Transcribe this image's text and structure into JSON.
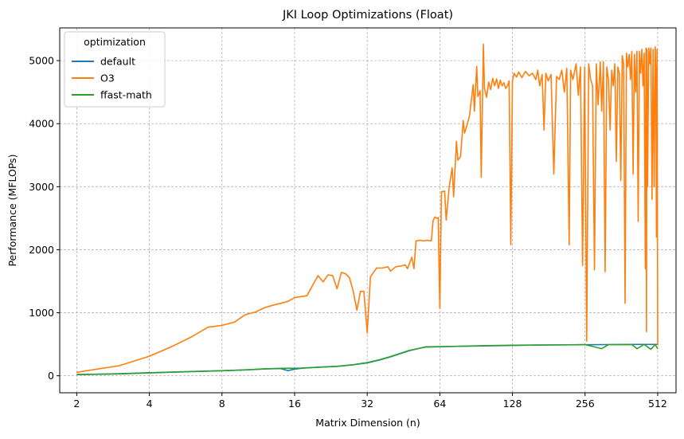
{
  "chart_data": {
    "type": "line",
    "title": "JKI Loop Optimizations (Float)",
    "xlabel": "Matrix Dimension (n)",
    "ylabel": "Performance (MFLOPs)",
    "x_scale": "log2",
    "xlim": [
      1.7,
      610
    ],
    "ylim": [
      -270,
      5520
    ],
    "x_ticks": [
      2,
      4,
      8,
      16,
      32,
      64,
      128,
      256,
      512
    ],
    "x_tick_labels": [
      "2",
      "4",
      "8",
      "16",
      "32",
      "64",
      "128",
      "256",
      "512"
    ],
    "y_ticks": [
      0,
      1000,
      2000,
      3000,
      4000,
      5000
    ],
    "y_tick_labels": [
      "0",
      "1000",
      "2000",
      "3000",
      "4000",
      "5000"
    ],
    "grid": true,
    "legend": {
      "title": "optimization",
      "placement": "top-left"
    },
    "series": [
      {
        "name": "default",
        "color": "#1f77b4",
        "points": [
          [
            2,
            20
          ],
          [
            3,
            32
          ],
          [
            4,
            48
          ],
          [
            6,
            68
          ],
          [
            8,
            80
          ],
          [
            10,
            92
          ],
          [
            12,
            108
          ],
          [
            14,
            115
          ],
          [
            15,
            82
          ],
          [
            16,
            105
          ],
          [
            17,
            118
          ],
          [
            20,
            135
          ],
          [
            24,
            150
          ],
          [
            28,
            175
          ],
          [
            32,
            205
          ],
          [
            36,
            250
          ],
          [
            40,
            300
          ],
          [
            48,
            400
          ],
          [
            56,
            460
          ],
          [
            64,
            462
          ],
          [
            80,
            468
          ],
          [
            100,
            475
          ],
          [
            128,
            482
          ],
          [
            160,
            487
          ],
          [
            200,
            490
          ],
          [
            256,
            493
          ],
          [
            320,
            495
          ],
          [
            400,
            497
          ],
          [
            450,
            498
          ],
          [
            512,
            498
          ]
        ]
      },
      {
        "name": "O3",
        "color": "#ff7f0e",
        "points": [
          [
            2,
            55
          ],
          [
            3,
            160
          ],
          [
            4,
            310
          ],
          [
            5,
            470
          ],
          [
            6,
            620
          ],
          [
            7,
            770
          ],
          [
            8,
            800
          ],
          [
            9,
            850
          ],
          [
            10,
            970
          ],
          [
            11,
            1010
          ],
          [
            12,
            1080
          ],
          [
            13,
            1120
          ],
          [
            14,
            1150
          ],
          [
            15,
            1180
          ],
          [
            16,
            1240
          ],
          [
            18,
            1270
          ],
          [
            20,
            1590
          ],
          [
            21,
            1490
          ],
          [
            22,
            1600
          ],
          [
            23,
            1590
          ],
          [
            24,
            1380
          ],
          [
            25,
            1640
          ],
          [
            26,
            1620
          ],
          [
            27,
            1560
          ],
          [
            28,
            1340
          ],
          [
            29,
            1040
          ],
          [
            30,
            1340
          ],
          [
            31,
            1340
          ],
          [
            32,
            680
          ],
          [
            33,
            1570
          ],
          [
            35,
            1710
          ],
          [
            37,
            1710
          ],
          [
            39,
            1730
          ],
          [
            40,
            1660
          ],
          [
            42,
            1730
          ],
          [
            44,
            1740
          ],
          [
            46,
            1760
          ],
          [
            47,
            1700
          ],
          [
            49,
            1880
          ],
          [
            50,
            1700
          ],
          [
            51,
            2140
          ],
          [
            53,
            2150
          ],
          [
            55,
            2140
          ],
          [
            57,
            2150
          ],
          [
            59,
            2140
          ],
          [
            60,
            2460
          ],
          [
            61,
            2520
          ],
          [
            62,
            2500
          ],
          [
            63,
            2510
          ],
          [
            64,
            1070
          ],
          [
            65,
            2920
          ],
          [
            67,
            2930
          ],
          [
            68,
            2470
          ],
          [
            70,
            3000
          ],
          [
            72,
            3300
          ],
          [
            73,
            2840
          ],
          [
            75,
            3720
          ],
          [
            76,
            3420
          ],
          [
            78,
            3480
          ],
          [
            80,
            4050
          ],
          [
            81,
            3850
          ],
          [
            83,
            3980
          ],
          [
            85,
            4130
          ],
          [
            86,
            4300
          ],
          [
            88,
            4620
          ],
          [
            89,
            4200
          ],
          [
            91,
            4910
          ],
          [
            92,
            4430
          ],
          [
            94,
            4520
          ],
          [
            95,
            3150
          ],
          [
            97,
            5260
          ],
          [
            98,
            4560
          ],
          [
            100,
            4420
          ],
          [
            102,
            4660
          ],
          [
            104,
            4540
          ],
          [
            106,
            4720
          ],
          [
            108,
            4600
          ],
          [
            110,
            4710
          ],
          [
            112,
            4560
          ],
          [
            114,
            4690
          ],
          [
            116,
            4600
          ],
          [
            118,
            4650
          ],
          [
            120,
            4560
          ],
          [
            122,
            4600
          ],
          [
            124,
            4680
          ],
          [
            126,
            2080
          ],
          [
            128,
            4680
          ],
          [
            130,
            4800
          ],
          [
            133,
            4740
          ],
          [
            136,
            4820
          ],
          [
            140,
            4730
          ],
          [
            145,
            4830
          ],
          [
            150,
            4760
          ],
          [
            155,
            4800
          ],
          [
            160,
            4700
          ],
          [
            163,
            4850
          ],
          [
            166,
            4600
          ],
          [
            170,
            4780
          ],
          [
            173,
            3900
          ],
          [
            176,
            4800
          ],
          [
            180,
            4680
          ],
          [
            185,
            4780
          ],
          [
            190,
            3200
          ],
          [
            195,
            4750
          ],
          [
            200,
            4700
          ],
          [
            205,
            4850
          ],
          [
            210,
            4500
          ],
          [
            215,
            4880
          ],
          [
            220,
            2080
          ],
          [
            223,
            4850
          ],
          [
            228,
            4700
          ],
          [
            235,
            4950
          ],
          [
            240,
            4450
          ],
          [
            245,
            4900
          ],
          [
            250,
            1750
          ],
          [
            255,
            4900
          ],
          [
            260,
            550
          ],
          [
            265,
            4950
          ],
          [
            270,
            4700
          ],
          [
            275,
            4600
          ],
          [
            280,
            1680
          ],
          [
            285,
            4950
          ],
          [
            290,
            4300
          ],
          [
            296,
            4980
          ],
          [
            300,
            4200
          ],
          [
            305,
            4980
          ],
          [
            310,
            1650
          ],
          [
            315,
            4900
          ],
          [
            320,
            4700
          ],
          [
            325,
            3900
          ],
          [
            330,
            4850
          ],
          [
            335,
            4600
          ],
          [
            340,
            4950
          ],
          [
            345,
            3400
          ],
          [
            350,
            4900
          ],
          [
            355,
            4800
          ],
          [
            360,
            3100
          ],
          [
            365,
            5080
          ],
          [
            370,
            4950
          ],
          [
            375,
            1150
          ],
          [
            380,
            5120
          ],
          [
            385,
            4900
          ],
          [
            390,
            5100
          ],
          [
            395,
            4700
          ],
          [
            400,
            5150
          ],
          [
            405,
            3200
          ],
          [
            410,
            5100
          ],
          [
            415,
            4500
          ],
          [
            420,
            5150
          ],
          [
            425,
            2450
          ],
          [
            430,
            5150
          ],
          [
            435,
            4800
          ],
          [
            440,
            5180
          ],
          [
            445,
            4600
          ],
          [
            450,
            5120
          ],
          [
            455,
            1700
          ],
          [
            458,
            5200
          ],
          [
            460,
            700
          ],
          [
            462,
            5180
          ],
          [
            465,
            3000
          ],
          [
            470,
            5200
          ],
          [
            475,
            4950
          ],
          [
            480,
            5200
          ],
          [
            485,
            2800
          ],
          [
            490,
            5180
          ],
          [
            495,
            3000
          ],
          [
            500,
            5220
          ],
          [
            503,
            4800
          ],
          [
            506,
            2200
          ],
          [
            509,
            5180
          ],
          [
            512,
            480
          ]
        ]
      },
      {
        "name": "ffast-math",
        "color": "#2ca02c",
        "points": [
          [
            2,
            18
          ],
          [
            3,
            30
          ],
          [
            4,
            45
          ],
          [
            6,
            65
          ],
          [
            8,
            80
          ],
          [
            10,
            95
          ],
          [
            12,
            110
          ],
          [
            14,
            118
          ],
          [
            16,
            120
          ],
          [
            17,
            122
          ],
          [
            20,
            135
          ],
          [
            24,
            150
          ],
          [
            28,
            175
          ],
          [
            32,
            210
          ],
          [
            36,
            255
          ],
          [
            40,
            305
          ],
          [
            48,
            405
          ],
          [
            56,
            455
          ],
          [
            64,
            460
          ],
          [
            80,
            470
          ],
          [
            100,
            478
          ],
          [
            128,
            485
          ],
          [
            160,
            488
          ],
          [
            200,
            490
          ],
          [
            256,
            495
          ],
          [
            300,
            430
          ],
          [
            320,
            494
          ],
          [
            400,
            496
          ],
          [
            420,
            430
          ],
          [
            450,
            497
          ],
          [
            480,
            420
          ],
          [
            500,
            495
          ],
          [
            512,
            430
          ]
        ]
      }
    ]
  }
}
